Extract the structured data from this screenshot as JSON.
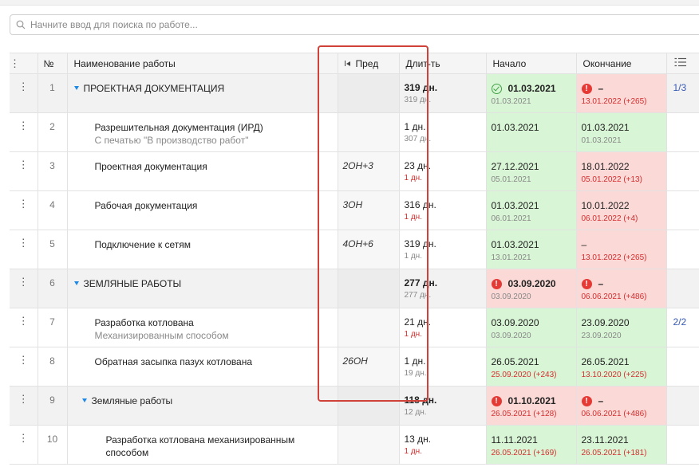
{
  "search": {
    "placeholder": "Начните ввод для поиска по работе..."
  },
  "columns": {
    "menu": "⋮",
    "num": "№",
    "name": "Наименование работы",
    "pred": "Пред",
    "duration": "Длит-ть",
    "start": "Начало",
    "end": "Окончание"
  },
  "icons": {
    "search": "search-icon",
    "row_menu": "kebab-menu-icon",
    "pred": "skip-back-icon",
    "checklist": "checklist-icon",
    "alert": "alert-circle-icon",
    "ok": "check-circle-icon"
  },
  "colors": {
    "green_cell": "#d8f5d5",
    "red_cell": "#fbd9d7",
    "alert": "#e53935",
    "delay_text": "#d32f2f",
    "highlight_frame": "#d0413a",
    "caret": "#1e88e5"
  },
  "rows": [
    {
      "num": "1",
      "name": "ПРОЕКТНАЯ ДОКУМЕНТАЦИЯ",
      "sub": "",
      "pred": "",
      "dur": "319 дн.",
      "dur_sub": "319 дн.",
      "start": "01.03.2021",
      "start_sub": "01.03.2021",
      "end": "–",
      "end_sub": "13.01.2022 (+265)",
      "count": "1/3"
    },
    {
      "num": "2",
      "name": "Разрешительная документация (ИРД)",
      "sub": "С печатью \"В производство работ\"",
      "pred": "",
      "dur": "1 дн.",
      "dur_sub": "307 дн.",
      "start": "01.03.2021",
      "start_sub": "",
      "end": "01.03.2021",
      "end_sub": "01.03.2021",
      "count": ""
    },
    {
      "num": "3",
      "name": "Проектная документация",
      "sub": "",
      "pred": "2ОН+3",
      "dur": "23 дн.",
      "dur_sub": "1 дн.",
      "start": "27.12.2021",
      "start_sub": "05.01.2021",
      "end": "18.01.2022",
      "end_sub": "05.01.2022 (+13)",
      "count": ""
    },
    {
      "num": "4",
      "name": "Рабочая документация",
      "sub": "",
      "pred": "3ОН",
      "dur": "316 дн.",
      "dur_sub": "1 дн.",
      "start": "01.03.2021",
      "start_sub": "06.01.2021",
      "end": "10.01.2022",
      "end_sub": "06.01.2022 (+4)",
      "count": ""
    },
    {
      "num": "5",
      "name": "Подключение к сетям",
      "sub": "",
      "pred": "4ОН+6",
      "dur": "319 дн.",
      "dur_sub": "1 дн.",
      "start": "01.03.2021",
      "start_sub": "13.01.2021",
      "end": "–",
      "end_sub": "13.01.2022 (+265)",
      "count": ""
    },
    {
      "num": "6",
      "name": "ЗЕМЛЯНЫЕ РАБОТЫ",
      "sub": "",
      "pred": "",
      "dur": "277 дн.",
      "dur_sub": "277 дн.",
      "start": "03.09.2020",
      "start_sub": "03.09.2020",
      "end": "–",
      "end_sub": "06.06.2021 (+486)",
      "count": ""
    },
    {
      "num": "7",
      "name": "Разработка котлована",
      "sub": "Механизированным способом",
      "pred": "",
      "dur": "21 дн.",
      "dur_sub": "1 дн.",
      "start": "03.09.2020",
      "start_sub": "03.09.2020",
      "end": "23.09.2020",
      "end_sub": "23.09.2020",
      "count": "2/2"
    },
    {
      "num": "8",
      "name": "Обратная засыпка пазух котлована",
      "sub": "",
      "pred": "26ОН",
      "dur": "1 дн.",
      "dur_sub": "19 дн.",
      "start": "26.05.2021",
      "start_sub": "25.09.2020 (+243)",
      "end": "26.05.2021",
      "end_sub": "13.10.2020 (+225)",
      "count": ""
    },
    {
      "num": "9",
      "name": "Земляные работы",
      "sub": "",
      "pred": "",
      "dur": "118 дн.",
      "dur_sub": "12 дн.",
      "start": "01.10.2021",
      "start_sub": "26.05.2021 (+128)",
      "end": "–",
      "end_sub": "06.06.2021 (+486)",
      "count": ""
    },
    {
      "num": "10",
      "name": "Разработка котлована механизированным",
      "sub": "способом",
      "pred": "",
      "dur": "13 дн.",
      "dur_sub": "1 дн.",
      "start": "11.11.2021",
      "start_sub": "26.05.2021 (+169)",
      "end": "23.11.2021",
      "end_sub": "26.05.2021 (+181)",
      "count": ""
    }
  ]
}
